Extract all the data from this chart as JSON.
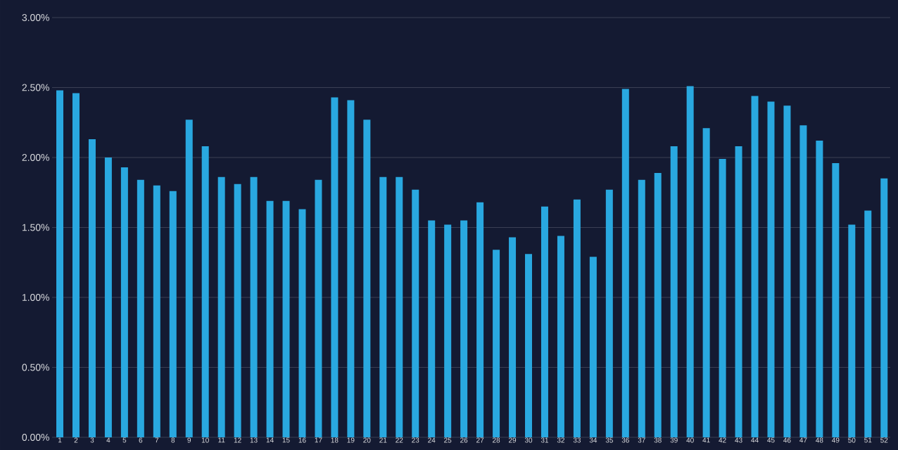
{
  "chart_data": {
    "type": "bar",
    "categories": [
      "1",
      "2",
      "3",
      "4",
      "5",
      "6",
      "7",
      "8",
      "9",
      "10",
      "11",
      "12",
      "13",
      "14",
      "15",
      "16",
      "17",
      "18",
      "19",
      "20",
      "21",
      "22",
      "23",
      "24",
      "25",
      "26",
      "27",
      "28",
      "29",
      "30",
      "31",
      "32",
      "33",
      "34",
      "35",
      "36",
      "37",
      "38",
      "39",
      "40",
      "41",
      "42",
      "43",
      "44",
      "45",
      "46",
      "47",
      "48",
      "49",
      "50",
      "51",
      "52"
    ],
    "values": [
      2.48,
      2.46,
      2.13,
      2.0,
      1.93,
      1.84,
      1.8,
      1.76,
      2.27,
      2.08,
      1.86,
      1.81,
      1.86,
      1.69,
      1.69,
      1.63,
      1.84,
      2.43,
      2.41,
      2.27,
      1.86,
      1.86,
      1.77,
      1.55,
      1.52,
      1.55,
      1.68,
      1.34,
      1.43,
      1.31,
      1.65,
      1.44,
      1.7,
      1.29,
      1.77,
      2.49,
      1.84,
      1.89,
      2.08,
      2.51,
      2.21,
      1.99,
      2.08,
      2.44,
      2.4,
      2.37,
      2.23,
      2.12,
      1.96,
      1.52,
      1.62,
      1.85
    ],
    "color": "#29a8e0",
    "ylim": [
      0,
      3
    ],
    "yticks": [
      {
        "value": 0,
        "label": "0.00%"
      },
      {
        "value": 0.5,
        "label": "0.50%"
      },
      {
        "value": 1,
        "label": "1.00%"
      },
      {
        "value": 1.5,
        "label": "1.50%"
      },
      {
        "value": 2,
        "label": "2.00%"
      },
      {
        "value": 2.5,
        "label": "2.50%"
      },
      {
        "value": 3,
        "label": "3.00%"
      }
    ],
    "grid": "y"
  }
}
